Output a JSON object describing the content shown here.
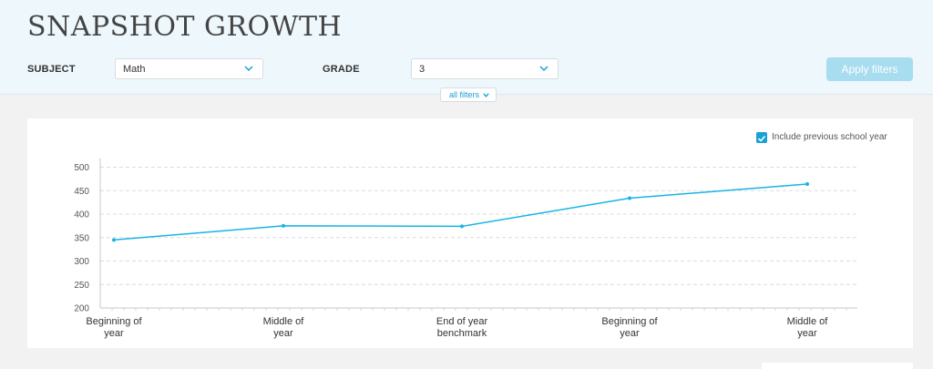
{
  "header": {
    "title": "SNAPSHOT GROWTH",
    "subject_label": "SUBJECT",
    "subject_value": "Math",
    "grade_label": "GRADE",
    "grade_value": "3",
    "apply_label": "Apply filters",
    "all_filters_label": "all filters"
  },
  "options": {
    "include_previous_label": "Include previous school year",
    "include_previous_checked": true
  },
  "colors": {
    "accent": "#1aa0d3",
    "line": "#1ab3e6",
    "apply_disabled": "#a8dcef",
    "header_bg": "#eef8fc"
  },
  "chart_data": {
    "type": "line",
    "x": [
      [
        "Beginning of",
        "year"
      ],
      [
        "Middle of",
        "year"
      ],
      [
        "End of year",
        "benchmark"
      ],
      [
        "Beginning of",
        "year"
      ],
      [
        "Middle of",
        "year"
      ]
    ],
    "series": [
      {
        "values": [
          345,
          375,
          374,
          434,
          464
        ]
      }
    ],
    "ylim": [
      200,
      500
    ],
    "yticks": [
      200,
      250,
      300,
      350,
      400,
      450,
      500
    ],
    "grid": true
  }
}
